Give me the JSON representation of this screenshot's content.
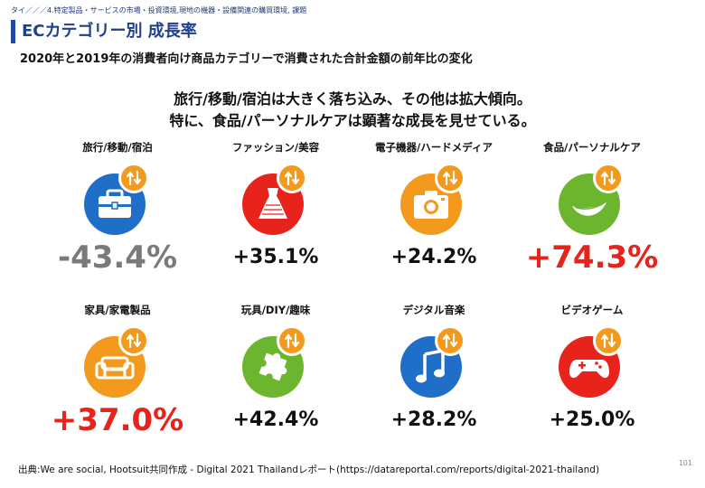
{
  "breadcrumb": "タイ／／／4.特定製品・サービスの市場・投資環境,現地の機器・設備関連の購買環境, 課題",
  "title": "ECカテゴリー別 成長率",
  "subtitle": "2020年と2019年の消費者向け商品カテゴリーで消費された合計金額の前年比の変化",
  "headline": {
    "line1": "旅行/移動/宿泊は大きく落ち込み、その他は拡大傾向。",
    "line2": "特に、食品/パーソナルケアは顕著な成長を見せている。"
  },
  "colors": {
    "blue": "#1f6fc9",
    "red": "#e8231c",
    "orange": "#f39a1e",
    "green": "#6bb52f",
    "gray": "#7a7a7a",
    "title_blue": "#1f3f8f"
  },
  "categories": [
    {
      "label": "旅行/移動/宿泊",
      "value": "-43.4%",
      "icon": "briefcase-icon",
      "circle_color": "#1f6fc9",
      "value_color": "#7a7a7a"
    },
    {
      "label": "ファッション/美容",
      "value": "+35.1%",
      "icon": "dress-icon",
      "circle_color": "#e8231c",
      "value_color": "#111111"
    },
    {
      "label": "電子機器/ハードメディア",
      "value": "+24.2%",
      "icon": "camera-icon",
      "circle_color": "#f39a1e",
      "value_color": "#111111"
    },
    {
      "label": "食品/パーソナルケア",
      "value": "+74.3%",
      "icon": "leaf-icon",
      "circle_color": "#6bb52f",
      "value_color": "#e8231c"
    },
    {
      "label": "家具/家電製品",
      "value": "+37.0%",
      "icon": "sofa-icon",
      "circle_color": "#f39a1e",
      "value_color": "#e8231c"
    },
    {
      "label": "玩具/DIY/趣味",
      "value": "+42.4%",
      "icon": "puzzle-icon",
      "circle_color": "#6bb52f",
      "value_color": "#111111"
    },
    {
      "label": "デジタル音楽",
      "value": "+28.2%",
      "icon": "music-note-icon",
      "circle_color": "#1f6fc9",
      "value_color": "#111111"
    },
    {
      "label": "ビデオゲーム",
      "value": "+25.0%",
      "icon": "gamepad-icon",
      "circle_color": "#e8231c",
      "value_color": "#111111"
    }
  ],
  "source": "出典:We are social, Hootsuit共同作成 - Digital 2021 Thailandレポート(https://datareportal.com/reports/digital-2021-thailand)",
  "page_number": "101"
}
